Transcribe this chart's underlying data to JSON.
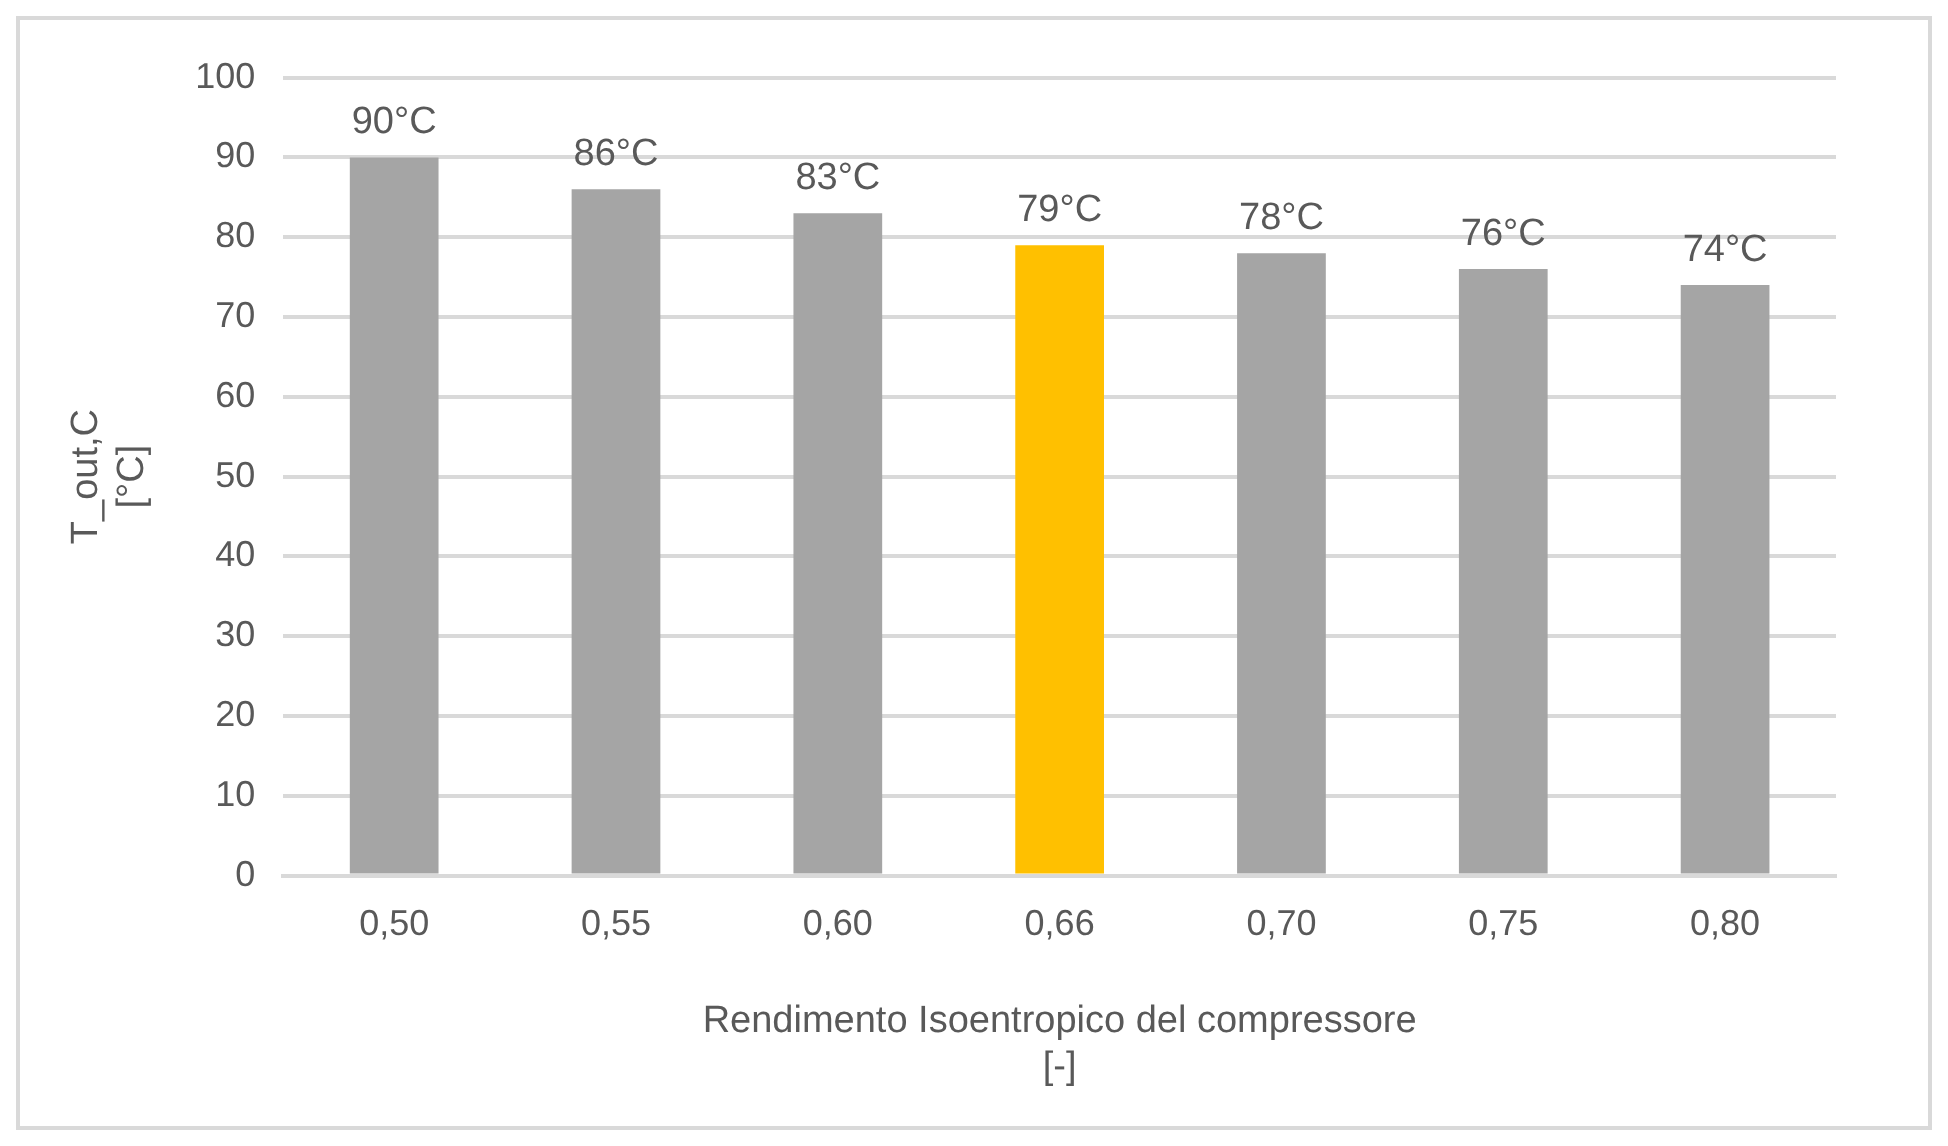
{
  "chart_data": {
    "type": "bar",
    "xlabel": "Rendimento Isoentropico del compressore\n[-]",
    "ylabel": "T_out,C\n[°C]",
    "categories": [
      "0,50",
      "0,55",
      "0,60",
      "0,66",
      "0,70",
      "0,75",
      "0,80"
    ],
    "values": [
      90,
      86,
      83,
      79,
      78,
      76,
      74
    ],
    "value_labels": [
      "90°C",
      "86°C",
      "83°C",
      "79°C",
      "78°C",
      "76°C",
      "74°C"
    ],
    "colors": [
      "#a5a5a5",
      "#a5a5a5",
      "#a5a5a5",
      "#ffc000",
      "#a5a5a5",
      "#a5a5a5",
      "#a5a5a5"
    ],
    "ylim": [
      0,
      100
    ],
    "yticks": [
      0,
      10,
      20,
      30,
      40,
      50,
      60,
      70,
      80,
      90,
      100
    ],
    "grid": "y",
    "legend": false
  }
}
